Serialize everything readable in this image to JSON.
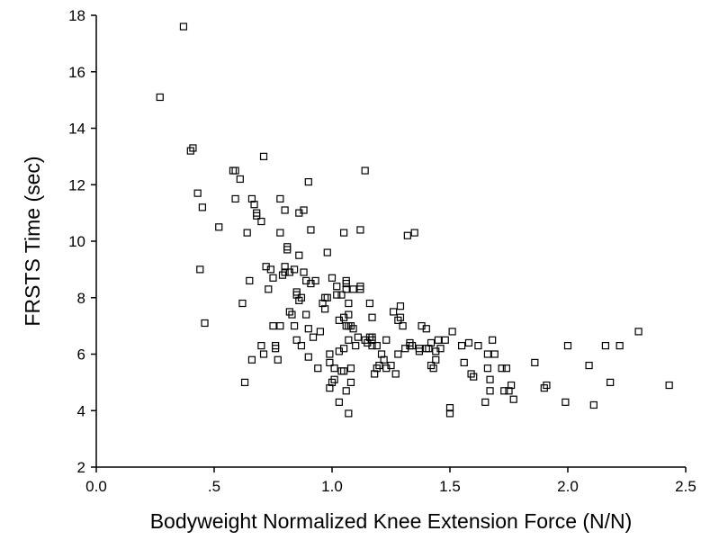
{
  "chart_data": {
    "type": "scatter",
    "title": "",
    "xlabel": "Bodyweight Normalized Knee Extension Force (N/N)",
    "ylabel": "FRSTS Time (sec)",
    "xlim": [
      0.0,
      2.5
    ],
    "ylim": [
      2,
      18
    ],
    "grid": false,
    "marker": "open-square",
    "x_ticks": [
      {
        "value": 0.0,
        "label": "0.0"
      },
      {
        "value": 0.5,
        "label": ".5"
      },
      {
        "value": 1.0,
        "label": "1.0"
      },
      {
        "value": 1.5,
        "label": "1.5"
      },
      {
        "value": 2.0,
        "label": "2.0"
      },
      {
        "value": 2.5,
        "label": "2.5"
      }
    ],
    "y_ticks": [
      {
        "value": 2,
        "label": "2"
      },
      {
        "value": 4,
        "label": "4"
      },
      {
        "value": 6,
        "label": "6"
      },
      {
        "value": 8,
        "label": "8"
      },
      {
        "value": 10,
        "label": "10"
      },
      {
        "value": 12,
        "label": "12"
      },
      {
        "value": 14,
        "label": "14"
      },
      {
        "value": 16,
        "label": "16"
      },
      {
        "value": 18,
        "label": "18"
      }
    ],
    "points": [
      [
        0.27,
        15.1
      ],
      [
        0.37,
        17.6
      ],
      [
        0.4,
        13.2
      ],
      [
        0.41,
        13.3
      ],
      [
        0.43,
        11.7
      ],
      [
        0.44,
        9.0
      ],
      [
        0.45,
        11.2
      ],
      [
        0.46,
        7.1
      ],
      [
        0.52,
        10.5
      ],
      [
        0.58,
        12.5
      ],
      [
        0.59,
        12.5
      ],
      [
        0.59,
        11.5
      ],
      [
        0.61,
        12.2
      ],
      [
        0.62,
        7.8
      ],
      [
        0.63,
        5.0
      ],
      [
        0.64,
        10.3
      ],
      [
        0.65,
        8.6
      ],
      [
        0.66,
        5.8
      ],
      [
        0.66,
        11.5
      ],
      [
        0.67,
        11.3
      ],
      [
        0.68,
        11.0
      ],
      [
        0.68,
        10.9
      ],
      [
        0.7,
        10.7
      ],
      [
        0.7,
        6.3
      ],
      [
        0.71,
        13.0
      ],
      [
        0.71,
        6.0
      ],
      [
        0.72,
        9.1
      ],
      [
        0.73,
        8.3
      ],
      [
        0.74,
        9.0
      ],
      [
        0.75,
        7.0
      ],
      [
        0.75,
        8.7
      ],
      [
        0.76,
        6.2
      ],
      [
        0.76,
        6.3
      ],
      [
        0.77,
        5.8
      ],
      [
        0.78,
        11.5
      ],
      [
        0.78,
        10.3
      ],
      [
        0.78,
        7.0
      ],
      [
        0.79,
        8.8
      ],
      [
        0.8,
        11.1
      ],
      [
        0.8,
        8.9
      ],
      [
        0.8,
        9.1
      ],
      [
        0.81,
        9.8
      ],
      [
        0.81,
        9.7
      ],
      [
        0.82,
        7.5
      ],
      [
        0.82,
        8.9
      ],
      [
        0.83,
        7.4
      ],
      [
        0.84,
        7.0
      ],
      [
        0.84,
        9.0
      ],
      [
        0.85,
        8.1
      ],
      [
        0.85,
        8.2
      ],
      [
        0.85,
        6.5
      ],
      [
        0.86,
        11.0
      ],
      [
        0.86,
        9.5
      ],
      [
        0.86,
        7.9
      ],
      [
        0.87,
        8.0
      ],
      [
        0.87,
        6.3
      ],
      [
        0.88,
        11.1
      ],
      [
        0.88,
        8.9
      ],
      [
        0.89,
        8.6
      ],
      [
        0.89,
        7.4
      ],
      [
        0.9,
        12.1
      ],
      [
        0.9,
        6.9
      ],
      [
        0.9,
        5.9
      ],
      [
        0.91,
        8.5
      ],
      [
        0.91,
        10.4
      ],
      [
        0.92,
        6.6
      ],
      [
        0.93,
        8.6
      ],
      [
        0.94,
        5.5
      ],
      [
        0.95,
        6.8
      ],
      [
        0.96,
        7.8
      ],
      [
        0.97,
        7.6
      ],
      [
        0.97,
        8.0
      ],
      [
        0.98,
        9.6
      ],
      [
        0.98,
        8.0
      ],
      [
        0.99,
        5.7
      ],
      [
        0.99,
        6.0
      ],
      [
        0.99,
        4.8
      ],
      [
        1.0,
        8.7
      ],
      [
        1.0,
        5.0
      ],
      [
        1.01,
        5.1
      ],
      [
        1.01,
        5.5
      ],
      [
        1.02,
        8.1
      ],
      [
        1.02,
        8.4
      ],
      [
        1.03,
        6.1
      ],
      [
        1.03,
        7.2
      ],
      [
        1.03,
        4.3
      ],
      [
        1.04,
        8.1
      ],
      [
        1.04,
        5.4
      ],
      [
        1.05,
        6.2
      ],
      [
        1.05,
        5.4
      ],
      [
        1.05,
        10.3
      ],
      [
        1.05,
        7.3
      ],
      [
        1.06,
        8.5
      ],
      [
        1.06,
        8.6
      ],
      [
        1.06,
        8.3
      ],
      [
        1.06,
        7.0
      ],
      [
        1.06,
        4.7
      ],
      [
        1.07,
        7.4
      ],
      [
        1.07,
        6.5
      ],
      [
        1.07,
        3.9
      ],
      [
        1.07,
        7.0
      ],
      [
        1.07,
        7.8
      ],
      [
        1.08,
        7.0
      ],
      [
        1.08,
        5.0
      ],
      [
        1.08,
        5.5
      ],
      [
        1.09,
        6.9
      ],
      [
        1.09,
        8.3
      ],
      [
        1.1,
        6.3
      ],
      [
        1.11,
        6.6
      ],
      [
        1.12,
        8.4
      ],
      [
        1.12,
        8.3
      ],
      [
        1.12,
        10.4
      ],
      [
        1.14,
        12.5
      ],
      [
        1.14,
        6.5
      ],
      [
        1.15,
        6.4
      ],
      [
        1.16,
        6.6
      ],
      [
        1.16,
        7.8
      ],
      [
        1.17,
        6.3
      ],
      [
        1.17,
        6.6
      ],
      [
        1.17,
        6.5
      ],
      [
        1.17,
        7.3
      ],
      [
        1.18,
        5.3
      ],
      [
        1.19,
        5.5
      ],
      [
        1.19,
        6.3
      ],
      [
        1.2,
        5.6
      ],
      [
        1.21,
        6.0
      ],
      [
        1.22,
        5.8
      ],
      [
        1.23,
        5.5
      ],
      [
        1.23,
        6.5
      ],
      [
        1.25,
        5.6
      ],
      [
        1.26,
        7.5
      ],
      [
        1.27,
        5.3
      ],
      [
        1.28,
        7.2
      ],
      [
        1.28,
        6.0
      ],
      [
        1.29,
        7.7
      ],
      [
        1.29,
        7.3
      ],
      [
        1.3,
        7.0
      ],
      [
        1.31,
        6.2
      ],
      [
        1.32,
        10.2
      ],
      [
        1.33,
        6.4
      ],
      [
        1.33,
        6.3
      ],
      [
        1.34,
        6.3
      ],
      [
        1.35,
        10.3
      ],
      [
        1.37,
        6.2
      ],
      [
        1.37,
        6.1
      ],
      [
        1.38,
        7.0
      ],
      [
        1.4,
        6.2
      ],
      [
        1.4,
        6.9
      ],
      [
        1.41,
        6.2
      ],
      [
        1.42,
        6.4
      ],
      [
        1.42,
        5.6
      ],
      [
        1.43,
        5.5
      ],
      [
        1.44,
        5.8
      ],
      [
        1.44,
        6.1
      ],
      [
        1.45,
        6.5
      ],
      [
        1.46,
        6.2
      ],
      [
        1.48,
        6.5
      ],
      [
        1.5,
        4.1
      ],
      [
        1.5,
        3.9
      ],
      [
        1.51,
        6.8
      ],
      [
        1.55,
        6.3
      ],
      [
        1.56,
        5.7
      ],
      [
        1.58,
        6.4
      ],
      [
        1.59,
        5.3
      ],
      [
        1.6,
        5.2
      ],
      [
        1.62,
        6.3
      ],
      [
        1.65,
        4.3
      ],
      [
        1.66,
        5.5
      ],
      [
        1.66,
        6.0
      ],
      [
        1.67,
        4.7
      ],
      [
        1.67,
        5.1
      ],
      [
        1.68,
        6.5
      ],
      [
        1.69,
        6.0
      ],
      [
        1.72,
        5.5
      ],
      [
        1.73,
        4.7
      ],
      [
        1.74,
        5.5
      ],
      [
        1.75,
        4.7
      ],
      [
        1.76,
        4.9
      ],
      [
        1.77,
        4.4
      ],
      [
        1.86,
        5.7
      ],
      [
        1.9,
        4.8
      ],
      [
        1.91,
        4.9
      ],
      [
        1.99,
        4.3
      ],
      [
        2.0,
        6.3
      ],
      [
        2.09,
        5.6
      ],
      [
        2.11,
        4.2
      ],
      [
        2.16,
        6.3
      ],
      [
        2.18,
        5.0
      ],
      [
        2.22,
        6.3
      ],
      [
        2.3,
        6.8
      ],
      [
        2.43,
        4.9
      ]
    ]
  }
}
